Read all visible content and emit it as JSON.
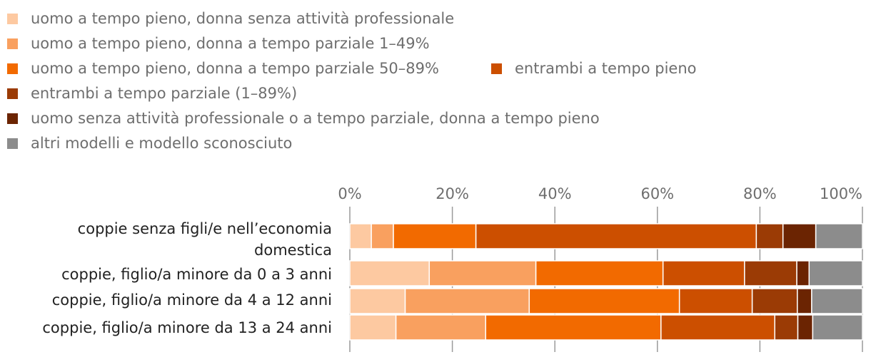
{
  "chart_data": {
    "type": "bar",
    "orientation": "horizontal",
    "stacked": true,
    "title": "",
    "xlabel": "",
    "ylabel": "",
    "xlim": [
      0,
      100
    ],
    "x_ticks": [
      "0%",
      "20%",
      "40%",
      "60%",
      "80%",
      "100%"
    ],
    "grid": true,
    "legend_position": "top",
    "categories": [
      [
        "coppie senza figli/e nell’economia",
        "domestica"
      ],
      [
        "coppie, figlio/a minore da 0 a 3 anni"
      ],
      [
        "coppie, figlio/a minore da 4 a 12 anni"
      ],
      [
        "coppie, figlio/a minore da 13 a 24 anni"
      ]
    ],
    "series": [
      {
        "name": "uomo a tempo pieno, donna senza attività professionale",
        "color": "#fdc9a1",
        "values": [
          4.2,
          15.5,
          10.8,
          9.0
        ]
      },
      {
        "name": "uomo a tempo pieno, donna a tempo parziale 1–49%",
        "color": "#f9a05f",
        "values": [
          4.3,
          20.8,
          24.2,
          17.5
        ]
      },
      {
        "name": "uomo a tempo pieno, donna a tempo parziale 50–89%",
        "color": "#f26a00",
        "values": [
          16.1,
          24.8,
          29.3,
          34.2
        ]
      },
      {
        "name": "entrambi a tempo pieno",
        "color": "#cc4f00",
        "values": [
          54.7,
          15.9,
          14.2,
          22.2
        ]
      },
      {
        "name": "entrambi a tempo parziale (1–89%)",
        "color": "#9b3b05",
        "values": [
          5.2,
          10.2,
          8.8,
          4.5
        ]
      },
      {
        "name": "uomo senza attività professionale o a tempo parziale, donna a tempo pieno",
        "color": "#6b2402",
        "values": [
          6.4,
          2.4,
          2.8,
          2.9
        ]
      },
      {
        "name": "altri modelli e modello sconosciuto",
        "color": "#8c8c8c",
        "values": [
          9.1,
          10.4,
          9.9,
          9.7
        ]
      }
    ]
  }
}
